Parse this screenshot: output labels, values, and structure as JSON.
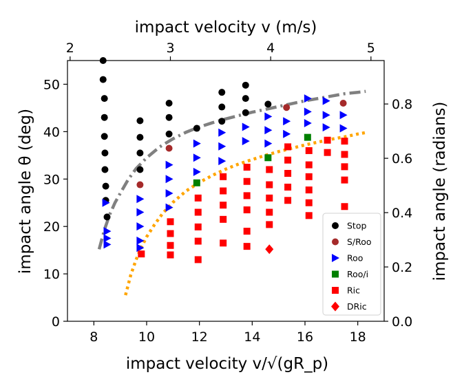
{
  "chart_data": {
    "type": "scatter",
    "title": "",
    "xlabel": "impact velocity v/√(gR_p)",
    "ylabel": "impact angle θ (deg)",
    "xlim": [
      7,
      19
    ],
    "ylim": [
      0,
      55
    ],
    "xticks": [
      8,
      10,
      12,
      14,
      16,
      18
    ],
    "yticks": [
      0,
      10,
      20,
      30,
      40,
      50
    ],
    "top_axis": {
      "label": "impact velocity v (m/s)",
      "ticks": [
        2,
        3,
        4,
        5
      ],
      "tick_positions_data": [
        7.1,
        10.9,
        14.7,
        18.5
      ]
    },
    "right_axis": {
      "label": "impact angle (radians)",
      "ticks": [
        "0.0",
        "0.2",
        "0.4",
        "0.6",
        "0.8"
      ],
      "tick_values": [
        0,
        0.2,
        0.4,
        0.6,
        0.8
      ]
    },
    "legend_position": "lower-right",
    "series": [
      {
        "name": "Stop",
        "marker": "circle",
        "color": "#000000",
        "points": [
          [
            8.35,
            55
          ],
          [
            8.35,
            51
          ],
          [
            8.4,
            47
          ],
          [
            8.4,
            43
          ],
          [
            8.4,
            39
          ],
          [
            8.42,
            35.5
          ],
          [
            8.42,
            32
          ],
          [
            8.45,
            28.5
          ],
          [
            8.45,
            25.5
          ],
          [
            8.5,
            22
          ],
          [
            9.75,
            42.3
          ],
          [
            9.75,
            38.8
          ],
          [
            9.75,
            35.5
          ],
          [
            9.75,
            32
          ],
          [
            10.85,
            46
          ],
          [
            10.85,
            43
          ],
          [
            10.85,
            39.5
          ],
          [
            11.9,
            40.7
          ],
          [
            12.85,
            48.3
          ],
          [
            12.85,
            45.2
          ],
          [
            12.85,
            42.2
          ],
          [
            13.75,
            49.8
          ],
          [
            13.75,
            47
          ],
          [
            13.75,
            44
          ],
          [
            14.6,
            45.8
          ]
        ]
      },
      {
        "name": "S/Roo",
        "marker": "circle",
        "color": "#a52a2a",
        "points": [
          [
            9.75,
            28.8
          ],
          [
            10.85,
            36.5
          ],
          [
            15.3,
            45.1
          ],
          [
            17.45,
            46
          ]
        ]
      },
      {
        "name": "Roo",
        "marker": "triangle-right",
        "color": "#0000ff",
        "points": [
          [
            8.45,
            25
          ],
          [
            8.5,
            19
          ],
          [
            8.5,
            17.5
          ],
          [
            8.5,
            16.2
          ],
          [
            9.75,
            25.8
          ],
          [
            9.75,
            23
          ],
          [
            9.75,
            20
          ],
          [
            9.75,
            17
          ],
          [
            9.75,
            15.5
          ],
          [
            10.85,
            33
          ],
          [
            10.85,
            30
          ],
          [
            10.85,
            27
          ],
          [
            10.85,
            24
          ],
          [
            11.9,
            37.5
          ],
          [
            11.9,
            34.5
          ],
          [
            11.9,
            31.5
          ],
          [
            12.85,
            39.8
          ],
          [
            12.85,
            36.9
          ],
          [
            12.85,
            33.8
          ],
          [
            13.75,
            41
          ],
          [
            13.75,
            38
          ],
          [
            14.6,
            43.2
          ],
          [
            14.6,
            40.3
          ],
          [
            14.6,
            37.5
          ],
          [
            15.3,
            42.2
          ],
          [
            15.3,
            39.5
          ],
          [
            16.1,
            47
          ],
          [
            16.1,
            44.2
          ],
          [
            16.1,
            41.8
          ],
          [
            16.8,
            46.5
          ],
          [
            16.8,
            43.5
          ],
          [
            16.8,
            40.9
          ],
          [
            17.45,
            43.5
          ],
          [
            17.45,
            40.7
          ]
        ]
      },
      {
        "name": "Roo/i",
        "marker": "square",
        "color": "#008000",
        "points": [
          [
            11.9,
            29.2
          ],
          [
            14.6,
            34.5
          ],
          [
            16.1,
            38.8
          ]
        ]
      },
      {
        "name": "Ric",
        "marker": "square",
        "color": "#ff0000",
        "points": [
          [
            9.8,
            14.2
          ],
          [
            10.9,
            21
          ],
          [
            10.9,
            18.5
          ],
          [
            10.9,
            16
          ],
          [
            10.9,
            14
          ],
          [
            11.95,
            26
          ],
          [
            11.95,
            23
          ],
          [
            11.95,
            19.9
          ],
          [
            11.95,
            16.9
          ],
          [
            11.95,
            13
          ],
          [
            12.9,
            30.5
          ],
          [
            12.9,
            27.5
          ],
          [
            12.9,
            24.5
          ],
          [
            12.9,
            21.5
          ],
          [
            12.9,
            16.5
          ],
          [
            13.8,
            32.5
          ],
          [
            13.8,
            29.5
          ],
          [
            13.8,
            26.5
          ],
          [
            13.8,
            23.5
          ],
          [
            13.8,
            19
          ],
          [
            13.8,
            15.8
          ],
          [
            14.65,
            32
          ],
          [
            14.65,
            28.8
          ],
          [
            14.65,
            26
          ],
          [
            14.65,
            23
          ],
          [
            14.65,
            20.4
          ],
          [
            15.35,
            36.8
          ],
          [
            15.35,
            34
          ],
          [
            15.35,
            31.2
          ],
          [
            15.35,
            28.3
          ],
          [
            15.35,
            25.5
          ],
          [
            16.15,
            36
          ],
          [
            16.15,
            33
          ],
          [
            16.15,
            30.5
          ],
          [
            16.15,
            27.7
          ],
          [
            16.15,
            25
          ],
          [
            16.15,
            22.3
          ],
          [
            16.85,
            38.2
          ],
          [
            16.85,
            35.6
          ],
          [
            17.5,
            38
          ],
          [
            17.5,
            35.2
          ],
          [
            17.5,
            32.6
          ],
          [
            17.5,
            29.8
          ],
          [
            17.5,
            24.2
          ]
        ]
      },
      {
        "name": "DRic",
        "marker": "diamond",
        "color": "#ff0000",
        "points": [
          [
            14.65,
            15.2
          ]
        ]
      }
    ],
    "fit_curves": [
      {
        "name": "stop-boundary",
        "style": "dashdot",
        "color": "#808080",
        "x": [
          8.2,
          8.4,
          8.6,
          8.8,
          9.0,
          9.3,
          9.6,
          10.0,
          10.5,
          11.0,
          11.5,
          12.0,
          12.5,
          13.0,
          13.5,
          14.0,
          14.5,
          15.0,
          15.5,
          16.0,
          16.5,
          17.0,
          17.5,
          18.0,
          18.3
        ],
        "y": [
          15.2,
          19.3,
          22.5,
          25,
          27,
          29.9,
          32.2,
          34.5,
          36.8,
          38.5,
          39.9,
          41,
          41.9,
          42.7,
          43.4,
          44.1,
          44.7,
          45.3,
          45.9,
          46.5,
          47,
          47.5,
          48,
          48.3,
          48.5
        ]
      },
      {
        "name": "ricochet-boundary",
        "style": "dotted",
        "color": "#ffa500",
        "x": [
          9.2,
          9.4,
          9.6,
          9.8,
          10.0,
          10.3,
          10.6,
          11.0,
          11.5,
          12.0,
          12.5,
          13.0,
          13.5,
          14.0,
          14.5,
          15.0,
          15.5,
          16.0,
          16.5,
          17.0,
          17.5,
          18.0,
          18.3
        ],
        "y": [
          5.5,
          9.8,
          13,
          15.6,
          17.8,
          20.4,
          22.7,
          25.1,
          27.5,
          29.3,
          30.8,
          32.1,
          33.2,
          34.1,
          35,
          35.8,
          36.5,
          37.2,
          37.8,
          38.4,
          38.9,
          39.5,
          39.8
        ]
      }
    ]
  }
}
